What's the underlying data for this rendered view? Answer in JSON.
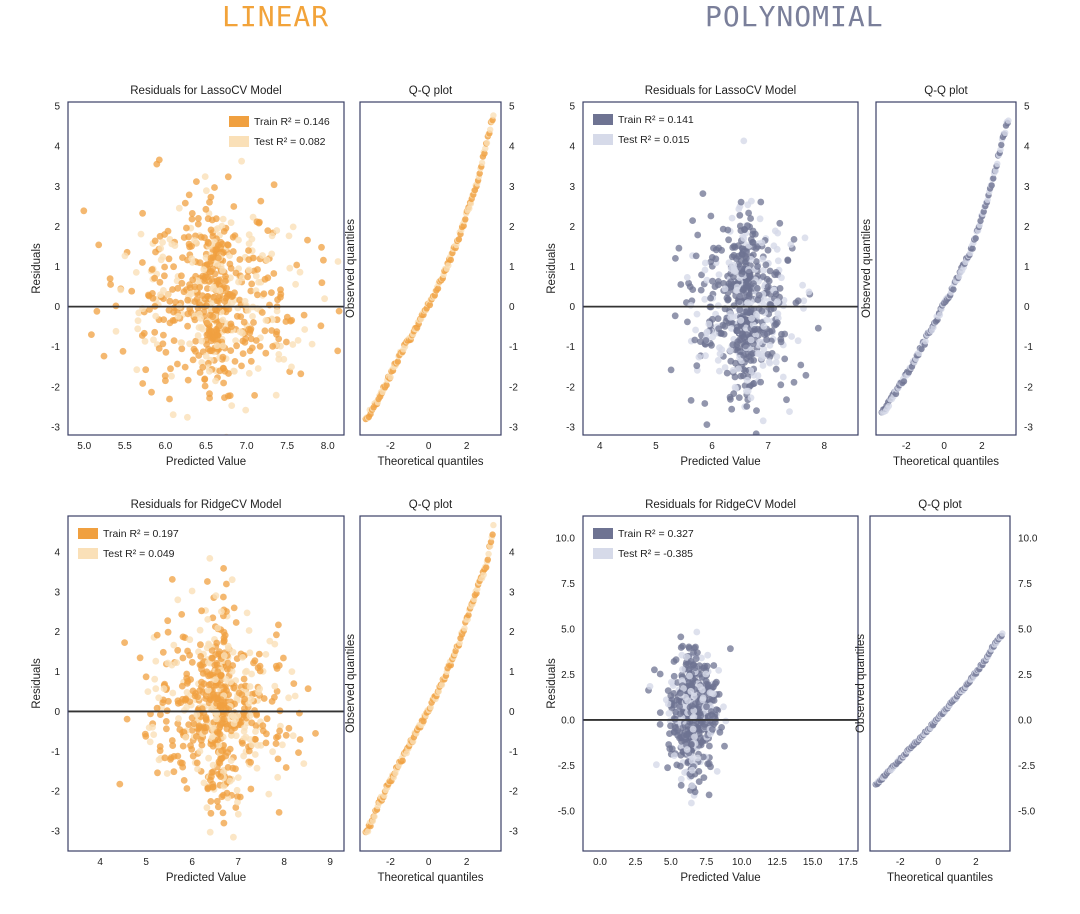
{
  "header": {
    "linear_title": "LINEAR",
    "linear_color": "#f2a33a",
    "polynomial_title": "POLYNOMIAL",
    "polynomial_color": "#7a7f9a"
  },
  "chart_data": [
    {
      "id": "linear-lasso",
      "type": "scatter",
      "title": "Residuals for LassoCV Model",
      "xlabel": "Predicted Value",
      "ylabel": "Residuals",
      "xlim": [
        4.8,
        8.2
      ],
      "ylim": [
        -3.2,
        5.1
      ],
      "xticks": [
        "5.0",
        "5.5",
        "6.0",
        "6.5",
        "7.0",
        "7.5",
        "8.0"
      ],
      "yticks": [
        "-3",
        "-2",
        "-1",
        "0",
        "1",
        "2",
        "3",
        "4",
        "5"
      ],
      "legend_position": "top-right",
      "train_color": "#f0a040",
      "test_color": "#fae0b8",
      "train_label": "Train $R^2 = 0.146$",
      "test_label": "Test $R^2 = 0.082$",
      "train_r2": 0.146,
      "test_r2": 0.082,
      "points": {
        "center_x": 6.6,
        "spread_x": 0.55,
        "center_y": 0.2,
        "spread_y": 1.15
      },
      "qq": {
        "title": "Q-Q plot",
        "xlabel": "Theoretical quantiles",
        "ylabel": "Observed quantiles",
        "xlim": [
          -3.6,
          3.8
        ],
        "ylim": [
          -3.2,
          5.1
        ],
        "xticks": [
          "-2",
          "0",
          "2"
        ],
        "yticks": [
          "-3",
          "-2",
          "-1",
          "0",
          "1",
          "2",
          "3",
          "4",
          "5"
        ],
        "line_points": [
          [
            -3.3,
            -2.8
          ],
          [
            -2.5,
            -2.2
          ],
          [
            -1.5,
            -1.2
          ],
          [
            -0.5,
            -0.4
          ],
          [
            0.5,
            0.5
          ],
          [
            1.5,
            1.6
          ],
          [
            2.5,
            3.0
          ],
          [
            3.0,
            4.0
          ],
          [
            3.4,
            4.8
          ]
        ]
      }
    },
    {
      "id": "poly-lasso",
      "type": "scatter",
      "title": "Residuals for LassoCV Model",
      "xlabel": "Predicted Value",
      "ylabel": "Residuals",
      "xlim": [
        3.7,
        8.6
      ],
      "ylim": [
        -3.2,
        5.1
      ],
      "xticks": [
        "4",
        "5",
        "6",
        "7",
        "8"
      ],
      "yticks": [
        "-3",
        "-2",
        "-1",
        "0",
        "1",
        "2",
        "3",
        "4",
        "5"
      ],
      "legend_position": "top-left",
      "train_color": "#6e7392",
      "test_color": "#d6dae9",
      "train_label": "Train $R^2 = 0.141$",
      "test_label": "Test $R^2 = 0.015$",
      "train_r2": 0.141,
      "test_r2": 0.015,
      "points": {
        "center_x": 6.6,
        "spread_x": 0.45,
        "center_y": 0.0,
        "spread_y": 1.1
      },
      "qq": {
        "title": "Q-Q plot",
        "xlabel": "Theoretical quantiles",
        "ylabel": "Observed quantiles",
        "xlim": [
          -3.6,
          3.8
        ],
        "ylim": [
          -3.2,
          5.1
        ],
        "xticks": [
          "-2",
          "0",
          "2"
        ],
        "yticks": [
          "-3",
          "-2",
          "-1",
          "0",
          "1",
          "2",
          "3",
          "4",
          "5"
        ],
        "line_points": [
          [
            -3.3,
            -2.7
          ],
          [
            -2.5,
            -2.1
          ],
          [
            -1.5,
            -1.3
          ],
          [
            -0.5,
            -0.4
          ],
          [
            0.5,
            0.5
          ],
          [
            1.5,
            1.5
          ],
          [
            2.5,
            3.0
          ],
          [
            3.0,
            4.0
          ],
          [
            3.4,
            4.7
          ]
        ]
      }
    },
    {
      "id": "linear-ridge",
      "type": "scatter",
      "title": "Residuals for RidgeCV Model",
      "xlabel": "Predicted Value",
      "ylabel": "Residuals",
      "xlim": [
        3.3,
        9.3
      ],
      "ylim": [
        -3.5,
        4.9
      ],
      "xticks": [
        "4",
        "5",
        "6",
        "7",
        "8",
        "9"
      ],
      "yticks": [
        "-3",
        "-2",
        "-1",
        "0",
        "1",
        "2",
        "3",
        "4"
      ],
      "legend_position": "top-left",
      "train_color": "#f0a040",
      "test_color": "#fae0b8",
      "train_label": "Train $R^2 = 0.197$",
      "test_label": "Test $R^2 = 0.049$",
      "train_r2": 0.197,
      "test_r2": 0.049,
      "points": {
        "center_x": 6.6,
        "spread_x": 0.75,
        "center_y": 0.1,
        "spread_y": 1.15
      },
      "qq": {
        "title": "Q-Q plot",
        "xlabel": "Theoretical quantiles",
        "ylabel": "Observed quantiles",
        "xlim": [
          -3.6,
          3.8
        ],
        "ylim": [
          -3.5,
          4.9
        ],
        "xticks": [
          "-2",
          "0",
          "2"
        ],
        "yticks": [
          "-3",
          "-2",
          "-1",
          "0",
          "1",
          "2",
          "3",
          "4"
        ],
        "line_points": [
          [
            -3.3,
            -3.1
          ],
          [
            -2.5,
            -2.2
          ],
          [
            -1.5,
            -1.3
          ],
          [
            -0.5,
            -0.4
          ],
          [
            0.5,
            0.5
          ],
          [
            1.5,
            1.6
          ],
          [
            2.5,
            3.0
          ],
          [
            3.0,
            3.6
          ],
          [
            3.4,
            4.6
          ]
        ]
      }
    },
    {
      "id": "poly-ridge",
      "type": "scatter",
      "title": "Residuals for RidgeCV Model",
      "xlabel": "Predicted Value",
      "ylabel": "Residuals",
      "xlim": [
        -1.2,
        18.2
      ],
      "ylim": [
        -7.2,
        11.2
      ],
      "xticks": [
        "0.0",
        "2.5",
        "5.0",
        "7.5",
        "10.0",
        "12.5",
        "15.0",
        "17.5"
      ],
      "yticks": [
        "-5.0",
        "-2.5",
        "0.0",
        "2.5",
        "5.0",
        "7.5",
        "10.0"
      ],
      "legend_position": "top-left",
      "train_color": "#6e7392",
      "test_color": "#d6dae9",
      "train_label": "Train $R^2 = 0.327$",
      "test_label": "Test $R^2 = -0.385$",
      "train_r2": 0.327,
      "test_r2": -0.385,
      "points": {
        "center_x": 6.5,
        "spread_x": 0.9,
        "center_y": 0.3,
        "spread_y": 1.6
      },
      "qq": {
        "title": "Q-Q plot",
        "xlabel": "Theoretical quantiles",
        "ylabel": "Observed quantiles",
        "xlim": [
          -3.6,
          3.8
        ],
        "ylim": [
          -7.2,
          11.2
        ],
        "xticks": [
          "-2",
          "0",
          "2"
        ],
        "yticks": [
          "-5.0",
          "-2.5",
          "0.0",
          "2.5",
          "5.0",
          "7.5",
          "10.0"
        ],
        "line_points": [
          [
            -3.3,
            -3.6
          ],
          [
            -2.5,
            -2.7
          ],
          [
            -1.5,
            -1.6
          ],
          [
            -0.5,
            -0.5
          ],
          [
            0.5,
            0.7
          ],
          [
            1.5,
            1.9
          ],
          [
            2.5,
            3.3
          ],
          [
            3.0,
            4.2
          ],
          [
            3.4,
            4.7
          ]
        ]
      }
    }
  ]
}
